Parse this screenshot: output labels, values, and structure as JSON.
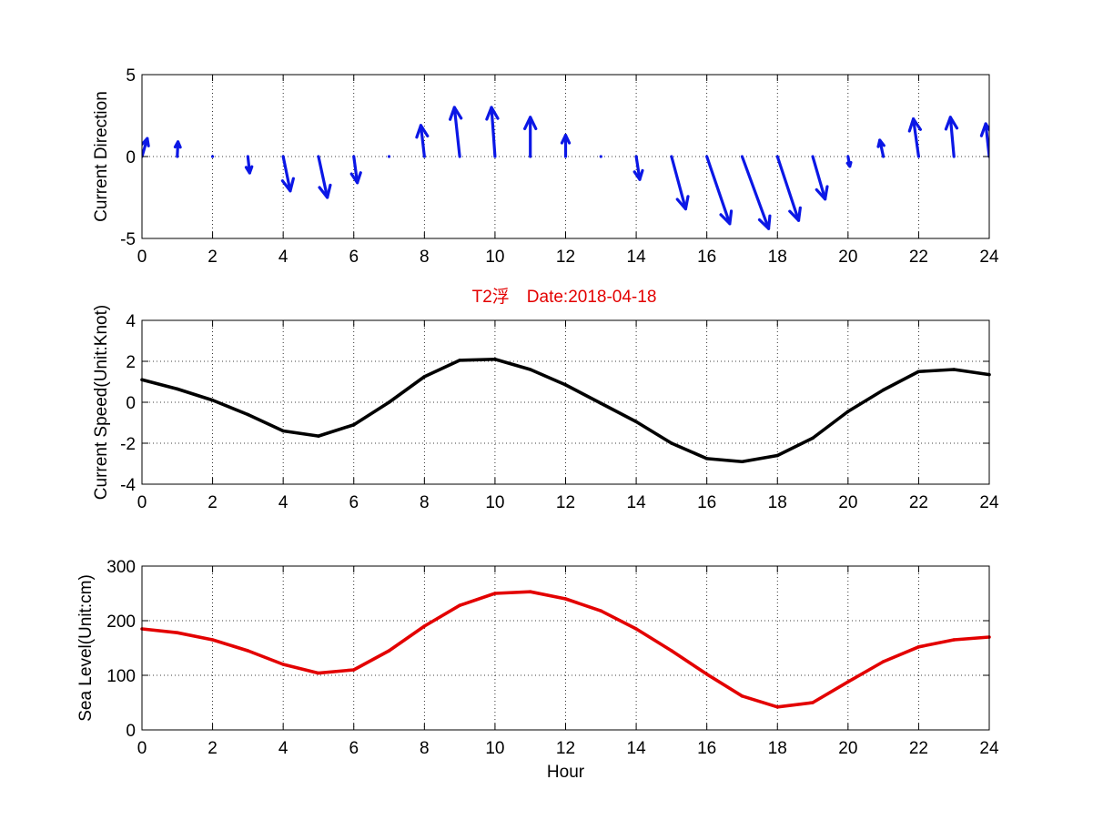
{
  "figure": {
    "title": "T2浮　Date:2018-04-18",
    "colors": {
      "arrows": "#0b17e6",
      "speed": "#000000",
      "sea_level": "#e30000",
      "title": "#e30000",
      "grid": "#000000",
      "background": "#ffffff"
    }
  },
  "chart_data": [
    {
      "type": "quiver",
      "ylabel": "Current Direction",
      "xlabel": "",
      "xlim": [
        0,
        24
      ],
      "ylim": [
        -5,
        5
      ],
      "xticks": [
        "0",
        "2",
        "4",
        "6",
        "8",
        "10",
        "12",
        "14",
        "16",
        "18",
        "20",
        "22",
        "24"
      ],
      "yticks": [
        "-5",
        "0",
        "5"
      ],
      "grid": true,
      "series": [
        {
          "x": [
            0,
            1,
            2,
            3,
            4,
            5,
            6,
            7,
            8,
            9,
            10,
            11,
            12,
            13,
            14,
            15,
            16,
            17,
            18,
            19,
            20,
            21,
            22,
            23,
            24
          ],
          "u": [
            0.15,
            0.02,
            0.01,
            0.05,
            0.2,
            0.25,
            0.1,
            0.0,
            -0.1,
            -0.15,
            -0.1,
            0.0,
            0.0,
            0.0,
            0.1,
            0.4,
            0.65,
            0.75,
            0.6,
            0.35,
            0.05,
            -0.1,
            -0.15,
            -0.1,
            -0.1
          ],
          "v": [
            1.1,
            0.9,
            0.1,
            -1.0,
            -2.1,
            -2.5,
            -1.6,
            -0.1,
            1.9,
            3.0,
            3.0,
            2.4,
            1.3,
            0.0,
            -1.4,
            -3.2,
            -4.1,
            -4.4,
            -3.9,
            -2.6,
            -0.6,
            1.0,
            2.3,
            2.4,
            2.0
          ]
        }
      ]
    },
    {
      "type": "line",
      "ylabel": "Current Speed(Unit:Knot)",
      "xlabel": "",
      "xlim": [
        0,
        24
      ],
      "ylim": [
        -4,
        4
      ],
      "xticks": [
        "0",
        "2",
        "4",
        "6",
        "8",
        "10",
        "12",
        "14",
        "16",
        "18",
        "20",
        "22",
        "24"
      ],
      "yticks": [
        "-4",
        "-2",
        "0",
        "2",
        "4"
      ],
      "grid": true,
      "series": [
        {
          "x": [
            0,
            1,
            2,
            3,
            4,
            5,
            6,
            7,
            8,
            9,
            10,
            11,
            12,
            13,
            14,
            15,
            16,
            17,
            18,
            19,
            20,
            21,
            22,
            23,
            24
          ],
          "values": [
            1.1,
            0.65,
            0.1,
            -0.6,
            -1.4,
            -1.65,
            -1.1,
            0.0,
            1.25,
            2.05,
            2.1,
            1.6,
            0.85,
            -0.05,
            -0.95,
            -2.0,
            -2.75,
            -2.9,
            -2.6,
            -1.75,
            -0.45,
            0.6,
            1.5,
            1.6,
            1.35
          ]
        }
      ]
    },
    {
      "type": "line",
      "ylabel": "Sea Level(Unit:cm)",
      "xlabel": "Hour",
      "xlim": [
        0,
        24
      ],
      "ylim": [
        0,
        300
      ],
      "xticks": [
        "0",
        "2",
        "4",
        "6",
        "8",
        "10",
        "12",
        "14",
        "16",
        "18",
        "20",
        "22",
        "24"
      ],
      "yticks": [
        "0",
        "100",
        "200",
        "300"
      ],
      "grid": true,
      "series": [
        {
          "x": [
            0,
            1,
            2,
            3,
            4,
            5,
            6,
            7,
            8,
            9,
            10,
            11,
            12,
            13,
            14,
            15,
            16,
            17,
            18,
            19,
            20,
            21,
            22,
            23,
            24
          ],
          "values": [
            185,
            178,
            165,
            145,
            120,
            104,
            110,
            145,
            190,
            228,
            250,
            253,
            240,
            218,
            185,
            145,
            102,
            62,
            42,
            50,
            88,
            125,
            152,
            165,
            170
          ]
        }
      ]
    }
  ]
}
